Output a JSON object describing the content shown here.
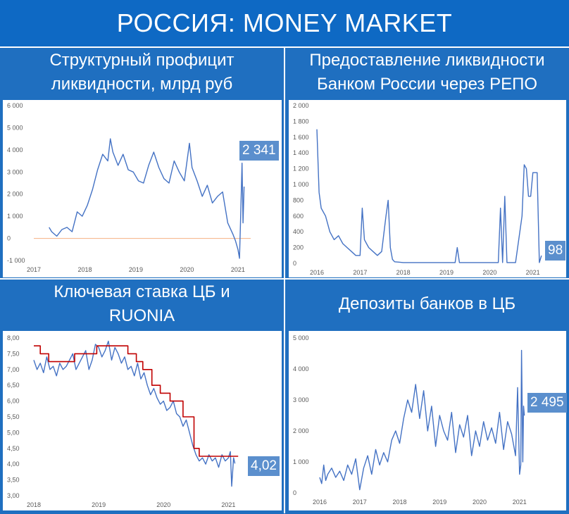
{
  "page_title": "РОССИЯ: MONEY MARKET",
  "colors": {
    "background": "#1f6fc0",
    "series_line": "#4472c4",
    "ref_line": "#c00000",
    "zero_line": "#f4b183",
    "callout_bg": "#5b8fcd"
  },
  "chart_data": [
    {
      "id": "liquidity",
      "type": "line",
      "title_line1": "Структурный профицит",
      "title_line2": "ликвидности, млрд руб",
      "x_ticks": [
        "2017",
        "2018",
        "2019",
        "2020",
        "2021"
      ],
      "y_ticks": [
        "6 000",
        "5 000",
        "4 000",
        "3 000",
        "2 000",
        "1 000",
        "0",
        "-1 000"
      ],
      "ylim": [
        -1000,
        6000
      ],
      "xlim": [
        2017.0,
        2021.25
      ],
      "reference_line": 0,
      "callout": "2 341",
      "series": [
        {
          "x": [
            2017.3,
            2017.35,
            2017.45,
            2017.55,
            2017.65,
            2017.75,
            2017.85,
            2017.95,
            2018.05,
            2018.15,
            2018.25,
            2018.35,
            2018.45,
            2018.5,
            2018.55,
            2018.65,
            2018.75,
            2018.85,
            2018.95,
            2019.05,
            2019.15,
            2019.25,
            2019.35,
            2019.45,
            2019.55,
            2019.65,
            2019.75,
            2019.85,
            2019.95,
            2020.05,
            2020.1,
            2020.2,
            2020.3,
            2020.4,
            2020.5,
            2020.6,
            2020.7,
            2020.8,
            2020.9,
            2020.95,
            2021.0,
            2021.03,
            2021.05,
            2021.08,
            2021.1,
            2021.12
          ],
          "values": [
            500,
            300,
            100,
            400,
            500,
            300,
            1200,
            1000,
            1500,
            2200,
            3100,
            3800,
            3500,
            4500,
            3900,
            3300,
            3800,
            3100,
            3000,
            2600,
            2500,
            3300,
            3900,
            3200,
            2700,
            2500,
            3500,
            3000,
            2600,
            4300,
            3200,
            2600,
            1900,
            2400,
            1600,
            1900,
            2100,
            700,
            200,
            -100,
            -500,
            -900,
            700,
            3400,
            700,
            2341
          ]
        }
      ]
    },
    {
      "id": "repo",
      "type": "line",
      "title_line1": "Предоставление ликвидности",
      "title_line2": "Банком России через РЕПО",
      "x_ticks": [
        "2016",
        "2017",
        "2018",
        "2019",
        "2020",
        "2021"
      ],
      "y_ticks": [
        "2 000",
        "1 800",
        "1 600",
        "1 400",
        "1 200",
        "1 000",
        "800",
        "600",
        "400",
        "200",
        "0"
      ],
      "ylim": [
        0,
        2000
      ],
      "xlim": [
        2016.0,
        2021.25
      ],
      "callout": "98",
      "series": [
        {
          "x": [
            2016.0,
            2016.05,
            2016.1,
            2016.2,
            2016.3,
            2016.4,
            2016.5,
            2016.6,
            2016.7,
            2016.8,
            2016.9,
            2017.0,
            2017.05,
            2017.1,
            2017.15,
            2017.2,
            2017.3,
            2017.4,
            2017.5,
            2017.6,
            2017.65,
            2017.7,
            2017.75,
            2017.8,
            2017.9,
            2018.0,
            2018.5,
            2019.0,
            2019.2,
            2019.25,
            2019.3,
            2019.5,
            2020.0,
            2020.2,
            2020.25,
            2020.3,
            2020.35,
            2020.4,
            2020.45,
            2020.5,
            2020.6,
            2020.75,
            2020.8,
            2020.85,
            2020.9,
            2020.95,
            2021.0,
            2021.05,
            2021.1,
            2021.15,
            2021.2
          ],
          "values": [
            1700,
            900,
            700,
            600,
            400,
            300,
            350,
            250,
            200,
            150,
            100,
            100,
            700,
            300,
            250,
            200,
            150,
            100,
            150,
            600,
            800,
            200,
            50,
            20,
            15,
            10,
            10,
            10,
            10,
            200,
            10,
            10,
            10,
            10,
            700,
            10,
            850,
            10,
            10,
            10,
            10,
            600,
            1250,
            1200,
            850,
            850,
            1150,
            1150,
            1150,
            10,
            98
          ]
        }
      ]
    },
    {
      "id": "rates",
      "type": "line",
      "title_line1": "Ключевая ставка ЦБ и",
      "title_line2": "RUONIA",
      "x_ticks": [
        "2018",
        "2019",
        "2020",
        "2021"
      ],
      "y_ticks": [
        "8,00",
        "7,50",
        "7,00",
        "6,50",
        "6,00",
        "5,50",
        "5,00",
        "4,50",
        "4,00",
        "3,50",
        "3,00"
      ],
      "ylim": [
        3.0,
        8.0
      ],
      "xlim": [
        2018.0,
        2021.3
      ],
      "callout": "4,02",
      "series": [
        {
          "name": "RUONIA",
          "x": [
            2018.0,
            2018.05,
            2018.1,
            2018.15,
            2018.2,
            2018.25,
            2018.3,
            2018.35,
            2018.4,
            2018.45,
            2018.5,
            2018.55,
            2018.6,
            2018.65,
            2018.7,
            2018.75,
            2018.8,
            2018.85,
            2018.9,
            2018.95,
            2019.0,
            2019.05,
            2019.1,
            2019.15,
            2019.2,
            2019.25,
            2019.3,
            2019.35,
            2019.4,
            2019.45,
            2019.5,
            2019.55,
            2019.6,
            2019.65,
            2019.7,
            2019.75,
            2019.8,
            2019.85,
            2019.9,
            2019.95,
            2020.0,
            2020.05,
            2020.1,
            2020.15,
            2020.2,
            2020.25,
            2020.3,
            2020.35,
            2020.4,
            2020.45,
            2020.5,
            2020.55,
            2020.6,
            2020.65,
            2020.7,
            2020.75,
            2020.8,
            2020.85,
            2020.9,
            2020.95,
            2021.0,
            2021.03,
            2021.05,
            2021.08,
            2021.1
          ],
          "values": [
            7.3,
            7.0,
            7.2,
            6.9,
            7.4,
            7.0,
            7.1,
            6.8,
            7.2,
            7.0,
            7.1,
            7.3,
            7.5,
            7.0,
            7.2,
            7.4,
            7.6,
            7.0,
            7.3,
            7.8,
            7.7,
            7.4,
            7.6,
            7.9,
            7.3,
            7.7,
            7.5,
            7.2,
            7.4,
            7.0,
            7.1,
            6.8,
            7.2,
            6.7,
            6.9,
            6.5,
            6.2,
            6.4,
            6.1,
            5.9,
            6.0,
            5.7,
            5.8,
            6.0,
            5.6,
            5.5,
            5.2,
            5.4,
            5.0,
            4.6,
            4.3,
            4.1,
            4.2,
            4.0,
            4.3,
            4.1,
            4.2,
            3.9,
            4.3,
            4.1,
            4.2,
            4.4,
            3.3,
            4.2,
            4.02
          ]
        },
        {
          "name": "Ключевая ставка",
          "x": [
            2018.0,
            2018.1,
            2018.1,
            2018.23,
            2018.23,
            2018.63,
            2018.63,
            2018.97,
            2018.97,
            2019.45,
            2019.45,
            2019.58,
            2019.58,
            2019.68,
            2019.68,
            2019.82,
            2019.82,
            2019.95,
            2019.95,
            2020.1,
            2020.1,
            2020.3,
            2020.3,
            2020.47,
            2020.47,
            2020.55,
            2020.55,
            2021.15
          ],
          "values": [
            7.75,
            7.75,
            7.5,
            7.5,
            7.25,
            7.25,
            7.5,
            7.5,
            7.75,
            7.75,
            7.5,
            7.5,
            7.25,
            7.25,
            7.0,
            7.0,
            6.5,
            6.5,
            6.25,
            6.25,
            6.0,
            6.0,
            5.5,
            5.5,
            4.5,
            4.5,
            4.25,
            4.25
          ]
        }
      ]
    },
    {
      "id": "deposits",
      "type": "line",
      "title_line1": "Депозиты банков в ЦБ",
      "title_line2": "",
      "x_ticks": [
        "2016",
        "2017",
        "2018",
        "2019",
        "2020",
        "2021"
      ],
      "y_ticks": [
        "5 000",
        "4 000",
        "3 000",
        "2 000",
        "1 000",
        "0"
      ],
      "ylim": [
        0,
        5000
      ],
      "xlim": [
        2016.0,
        2021.25
      ],
      "callout": "2 495",
      "series": [
        {
          "x": [
            2016.0,
            2016.05,
            2016.1,
            2016.15,
            2016.2,
            2016.3,
            2016.4,
            2016.5,
            2016.6,
            2016.7,
            2016.8,
            2016.9,
            2017.0,
            2017.1,
            2017.2,
            2017.3,
            2017.4,
            2017.5,
            2017.6,
            2017.7,
            2017.8,
            2017.9,
            2018.0,
            2018.1,
            2018.2,
            2018.3,
            2018.4,
            2018.5,
            2018.6,
            2018.7,
            2018.8,
            2018.9,
            2019.0,
            2019.1,
            2019.2,
            2019.3,
            2019.4,
            2019.5,
            2019.6,
            2019.7,
            2019.8,
            2019.9,
            2020.0,
            2020.1,
            2020.2,
            2020.3,
            2020.4,
            2020.5,
            2020.6,
            2020.7,
            2020.8,
            2020.9,
            2020.95,
            2021.0,
            2021.03,
            2021.05,
            2021.08,
            2021.1,
            2021.12
          ],
          "values": [
            500,
            300,
            900,
            400,
            600,
            800,
            500,
            700,
            400,
            900,
            600,
            1100,
            100,
            800,
            1200,
            600,
            1400,
            900,
            1300,
            1000,
            1700,
            2000,
            1600,
            2400,
            3000,
            2600,
            3500,
            2400,
            3300,
            2000,
            2800,
            1500,
            2500,
            2000,
            1700,
            2600,
            1300,
            2200,
            1800,
            2500,
            1200,
            2000,
            1500,
            2300,
            1700,
            2100,
            1600,
            2600,
            1400,
            2300,
            1900,
            1200,
            3400,
            600,
            900,
            4600,
            1000,
            2800,
            2495
          ]
        }
      ]
    }
  ]
}
